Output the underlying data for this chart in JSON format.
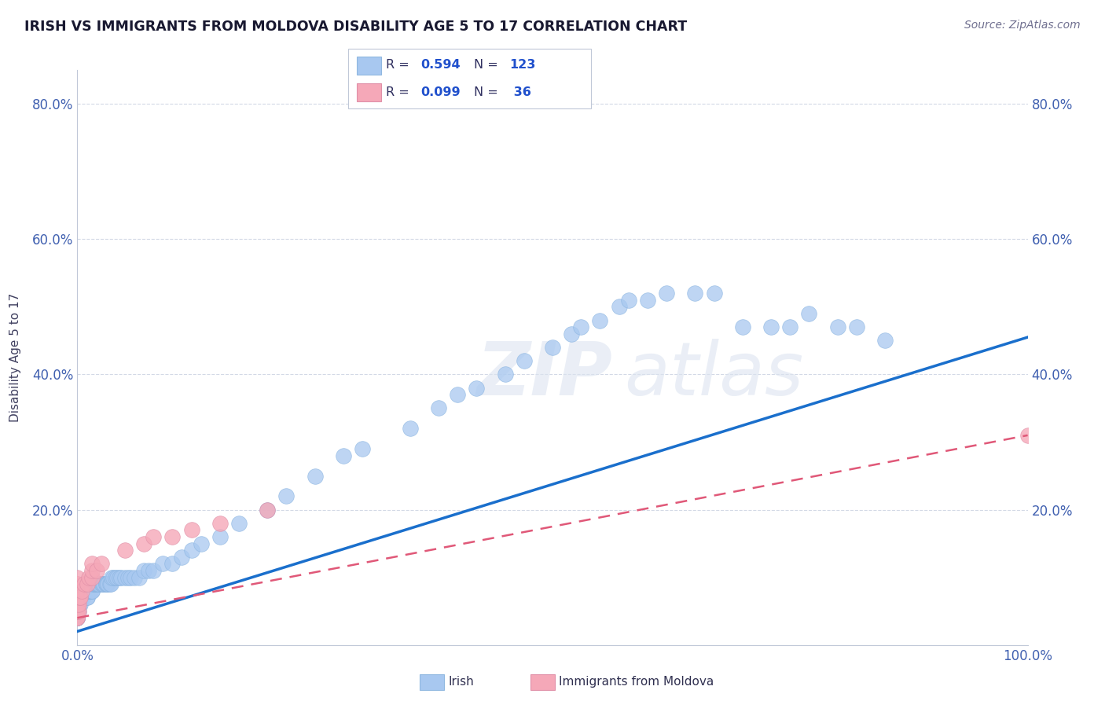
{
  "title": "IRISH VS IMMIGRANTS FROM MOLDOVA DISABILITY AGE 5 TO 17 CORRELATION CHART",
  "source": "Source: ZipAtlas.com",
  "ylabel": "Disability Age 5 to 17",
  "xlim": [
    0.0,
    1.0
  ],
  "ylim": [
    0.0,
    0.85
  ],
  "legend_R_irish": "0.594",
  "legend_N_irish": "123",
  "legend_R_moldova": "0.099",
  "legend_N_moldova": "36",
  "irish_color": "#a8c8f0",
  "moldova_color": "#f5a8b8",
  "irish_line_color": "#1a6fcc",
  "moldova_line_color": "#e05878",
  "background_color": "#ffffff",
  "watermark": "ZIPatlas",
  "irish_x": [
    0.0,
    0.0,
    0.0,
    0.0,
    0.0,
    0.0,
    0.0,
    0.0,
    0.0,
    0.0,
    0.0,
    0.0,
    0.0,
    0.0,
    0.0,
    0.0,
    0.0,
    0.0,
    0.0,
    0.0,
    0.0,
    0.0,
    0.0,
    0.0,
    0.0,
    0.0,
    0.0,
    0.0,
    0.0,
    0.0,
    0.001,
    0.001,
    0.002,
    0.002,
    0.003,
    0.003,
    0.004,
    0.004,
    0.005,
    0.005,
    0.006,
    0.007,
    0.008,
    0.009,
    0.01,
    0.01,
    0.01,
    0.01,
    0.01,
    0.012,
    0.013,
    0.014,
    0.015,
    0.015,
    0.016,
    0.017,
    0.018,
    0.019,
    0.02,
    0.02,
    0.02,
    0.021,
    0.022,
    0.023,
    0.025,
    0.026,
    0.027,
    0.028,
    0.03,
    0.03,
    0.031,
    0.032,
    0.034,
    0.035,
    0.036,
    0.038,
    0.04,
    0.042,
    0.044,
    0.046,
    0.05,
    0.053,
    0.056,
    0.06,
    0.065,
    0.07,
    0.075,
    0.08,
    0.09,
    0.1,
    0.11,
    0.12,
    0.13,
    0.15,
    0.17,
    0.2,
    0.22,
    0.25,
    0.28,
    0.3,
    0.35,
    0.38,
    0.4,
    0.42,
    0.45,
    0.47,
    0.5,
    0.52,
    0.53,
    0.55,
    0.57,
    0.58,
    0.6,
    0.62,
    0.65,
    0.67,
    0.7,
    0.73,
    0.75,
    0.77,
    0.8,
    0.82,
    0.85
  ],
  "irish_y": [
    0.04,
    0.04,
    0.04,
    0.04,
    0.04,
    0.04,
    0.05,
    0.05,
    0.05,
    0.05,
    0.05,
    0.05,
    0.05,
    0.05,
    0.06,
    0.06,
    0.06,
    0.06,
    0.06,
    0.06,
    0.06,
    0.06,
    0.07,
    0.07,
    0.07,
    0.07,
    0.07,
    0.07,
    0.07,
    0.07,
    0.05,
    0.06,
    0.06,
    0.07,
    0.06,
    0.07,
    0.07,
    0.07,
    0.07,
    0.07,
    0.07,
    0.08,
    0.08,
    0.08,
    0.07,
    0.07,
    0.08,
    0.08,
    0.08,
    0.08,
    0.08,
    0.08,
    0.08,
    0.08,
    0.09,
    0.09,
    0.09,
    0.09,
    0.09,
    0.09,
    0.09,
    0.09,
    0.09,
    0.09,
    0.09,
    0.09,
    0.09,
    0.09,
    0.09,
    0.09,
    0.09,
    0.09,
    0.09,
    0.09,
    0.1,
    0.1,
    0.1,
    0.1,
    0.1,
    0.1,
    0.1,
    0.1,
    0.1,
    0.1,
    0.1,
    0.11,
    0.11,
    0.11,
    0.12,
    0.12,
    0.13,
    0.14,
    0.15,
    0.16,
    0.18,
    0.2,
    0.22,
    0.25,
    0.28,
    0.29,
    0.32,
    0.35,
    0.37,
    0.38,
    0.4,
    0.42,
    0.44,
    0.46,
    0.47,
    0.48,
    0.5,
    0.51,
    0.51,
    0.52,
    0.52,
    0.52,
    0.47,
    0.47,
    0.47,
    0.49,
    0.47,
    0.47,
    0.45
  ],
  "moldova_x": [
    0.0,
    0.0,
    0.0,
    0.0,
    0.0,
    0.0,
    0.0,
    0.0,
    0.0,
    0.0,
    0.0,
    0.0,
    0.0,
    0.0,
    0.0,
    0.001,
    0.001,
    0.002,
    0.003,
    0.005,
    0.007,
    0.01,
    0.012,
    0.015,
    0.015,
    0.015,
    0.02,
    0.025,
    0.05,
    0.07,
    0.08,
    0.1,
    0.12,
    0.15,
    0.2,
    1.0
  ],
  "moldova_y": [
    0.04,
    0.04,
    0.05,
    0.05,
    0.05,
    0.06,
    0.06,
    0.06,
    0.07,
    0.07,
    0.08,
    0.08,
    0.09,
    0.09,
    0.1,
    0.05,
    0.06,
    0.07,
    0.07,
    0.08,
    0.09,
    0.09,
    0.1,
    0.1,
    0.11,
    0.12,
    0.11,
    0.12,
    0.14,
    0.15,
    0.16,
    0.16,
    0.17,
    0.18,
    0.2,
    0.31
  ],
  "irish_line_x0": 0.0,
  "irish_line_y0": 0.02,
  "irish_line_x1": 1.0,
  "irish_line_y1": 0.455,
  "moldova_line_x0": 0.0,
  "moldova_line_y0": 0.04,
  "moldova_line_x1": 1.0,
  "moldova_line_y1": 0.31
}
